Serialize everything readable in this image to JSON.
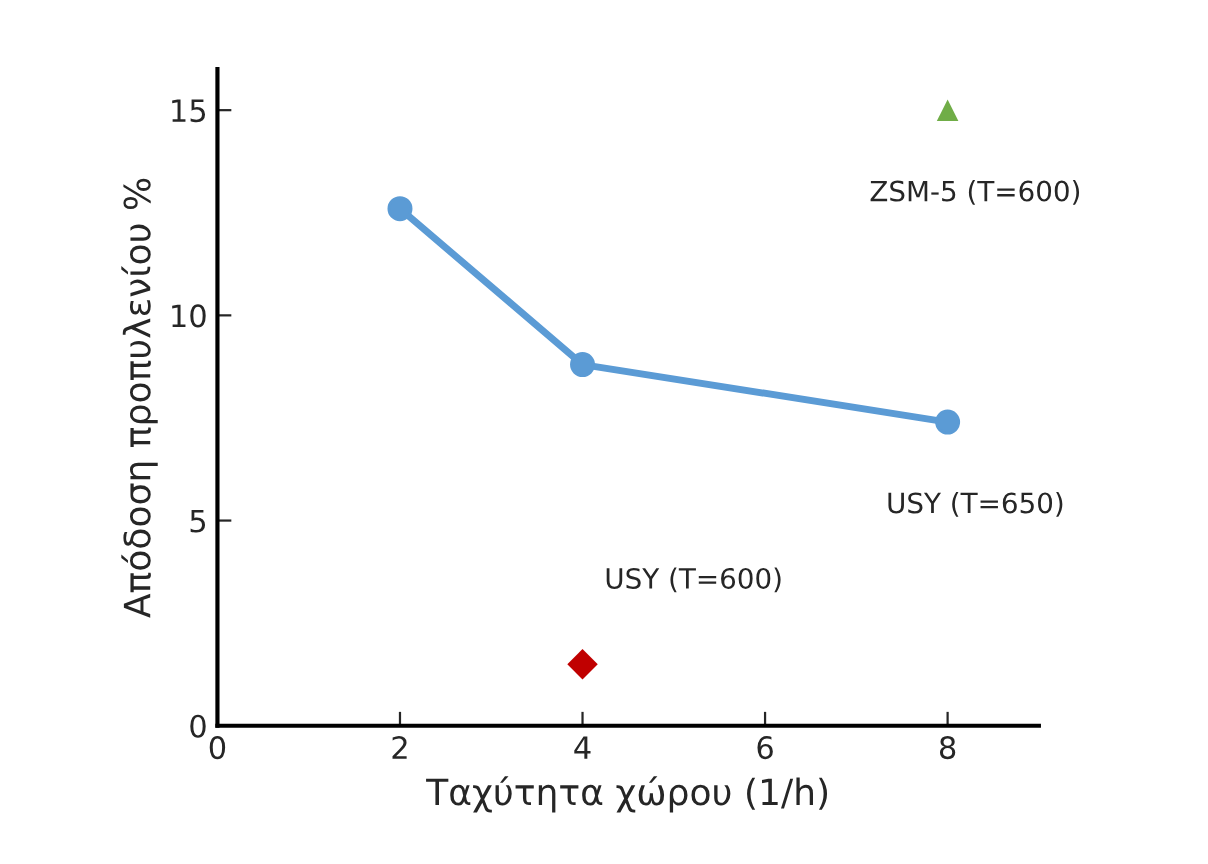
{
  "chart_data": {
    "type": "line",
    "xlabel": "Ταχύτητα χώρου (1/h)",
    "ylabel": "Απόδοση προπυλενίου %",
    "series": [
      {
        "type": "line",
        "name": "USY (T=650)",
        "color": "#5b9bd5",
        "marker": "circle",
        "line_style": "solid",
        "x": [
          2,
          4,
          8
        ],
        "values": [
          12.6,
          8.8,
          7.4
        ]
      },
      {
        "type": "scatter",
        "name": "USY (T=600)",
        "color": "#c00000",
        "marker": "diamond",
        "x": [
          4
        ],
        "values": [
          1.5
        ]
      },
      {
        "type": "scatter",
        "name": "ZSM-5 (T=600)",
        "color": "#70ad47",
        "marker": "triangle",
        "x": [
          8
        ],
        "values": [
          15
        ]
      }
    ],
    "xlim": [
      0,
      9
    ],
    "xticks": [
      0,
      2,
      4,
      6,
      8
    ],
    "ylim": [
      0,
      16
    ],
    "yticks": [
      0,
      5,
      10,
      15
    ],
    "grid": false,
    "legend": false
  }
}
